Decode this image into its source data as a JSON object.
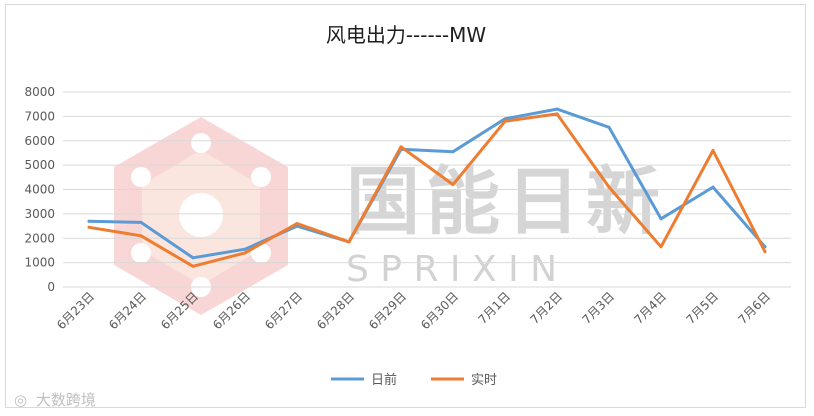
{
  "chart_data": {
    "type": "line",
    "title": "风电出力------MW",
    "categories": [
      "6月23日",
      "6月24日",
      "6月25日",
      "6月26日",
      "6月27日",
      "6月28日",
      "6月29日",
      "6月30日",
      "7月1日",
      "7月2日",
      "7月3日",
      "7月4日",
      "7月5日",
      "7月6日"
    ],
    "ylim": [
      0,
      8000
    ],
    "yticks": [
      0,
      1000,
      2000,
      3000,
      4000,
      5000,
      6000,
      7000,
      8000
    ],
    "grid": true,
    "legend_position": "bottom",
    "series": [
      {
        "name": "日前",
        "color": "#5b9bd5",
        "values": [
          2700,
          2650,
          1200,
          1550,
          2500,
          1850,
          5650,
          5550,
          6900,
          7300,
          6550,
          2800,
          4100,
          1650
        ]
      },
      {
        "name": "实时",
        "color": "#ed7d31",
        "values": [
          2450,
          2100,
          850,
          1400,
          2600,
          1850,
          5750,
          4200,
          6800,
          7100,
          4100,
          1650,
          5600,
          1450
        ]
      }
    ]
  },
  "watermark": {
    "cn": "国能日新",
    "en": "S P R I X I N",
    "corner": "大数跨境"
  }
}
